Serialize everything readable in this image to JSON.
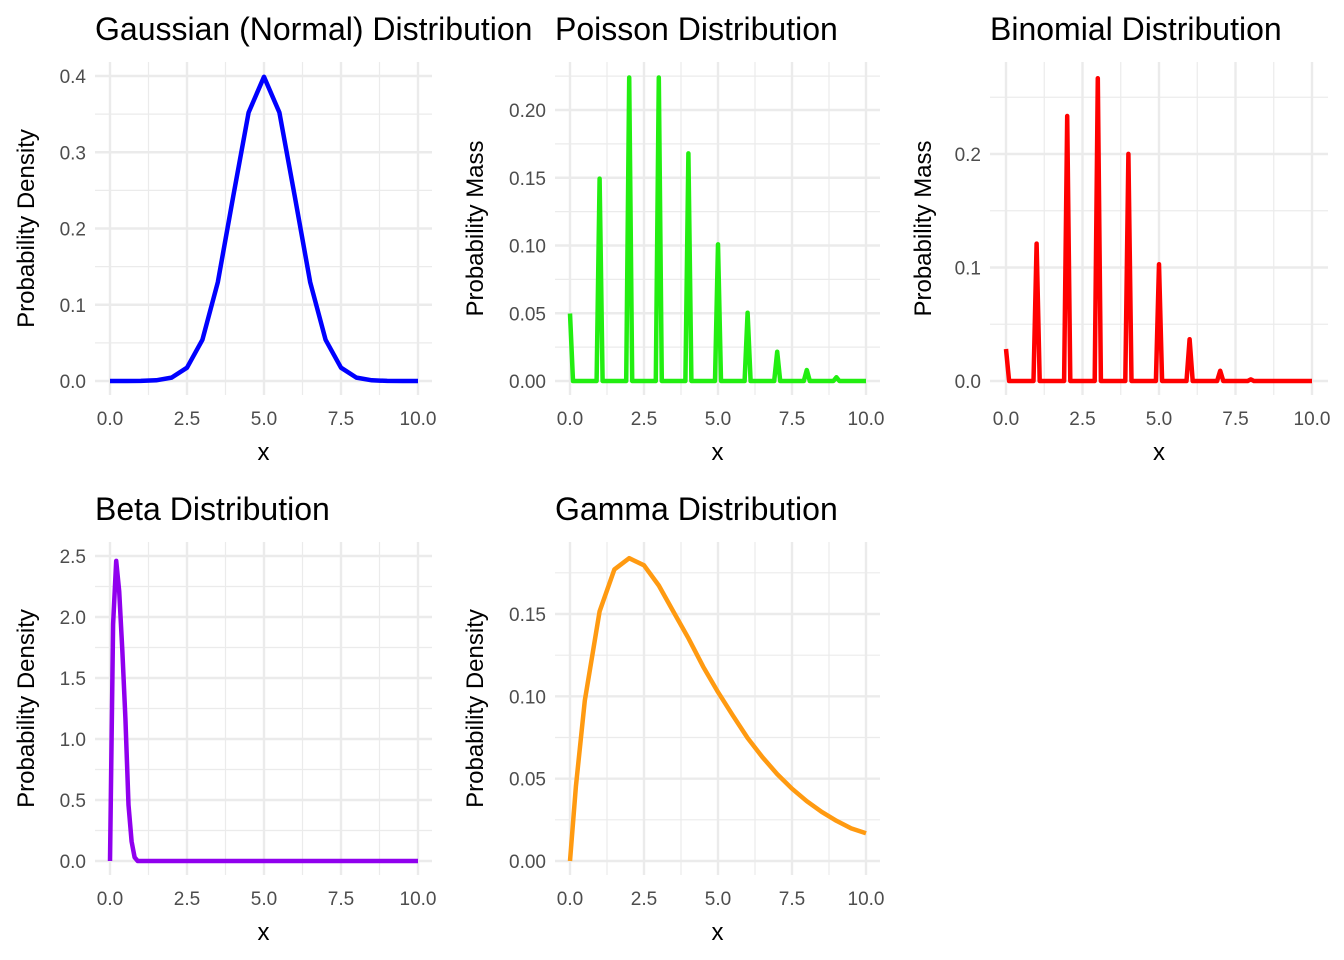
{
  "figure": {
    "background": "#ffffff"
  },
  "chart_data": [
    {
      "type": "line",
      "title": "Gaussian (Normal) Distribution",
      "xlabel": "x",
      "ylabel": "Probability Density",
      "color": "#0000ff",
      "xlim": [
        0,
        10
      ],
      "ylim": [
        0,
        0.4
      ],
      "xticks": [
        0,
        2.5,
        5,
        7.5,
        10
      ],
      "xtick_labels": [
        "0.0",
        "2.5",
        "5.0",
        "7.5",
        "10.0"
      ],
      "yticks": [
        0,
        0.1,
        0.2,
        0.3,
        0.4
      ],
      "ytick_labels": [
        "0.0",
        "0.1",
        "0.2",
        "0.3",
        "0.4"
      ],
      "grid": true,
      "series": [
        {
          "x": [
            0,
            0.5,
            1,
            1.5,
            2,
            2.5,
            3,
            3.5,
            4,
            4.5,
            5,
            5.5,
            6,
            6.5,
            7,
            7.5,
            8,
            8.5,
            9,
            9.5,
            10
          ],
          "y": [
            0,
            0,
            0.0001,
            0.0009,
            0.0044,
            0.0175,
            0.054,
            0.1295,
            0.242,
            0.3521,
            0.3989,
            0.3521,
            0.242,
            0.1295,
            0.054,
            0.0175,
            0.0044,
            0.0009,
            0.0001,
            0,
            0
          ]
        }
      ]
    },
    {
      "type": "line",
      "title": "Poisson Distribution",
      "xlabel": "x",
      "ylabel": "Probability Mass",
      "color": "#22ee11",
      "xlim": [
        0,
        10
      ],
      "ylim": [
        0,
        0.225
      ],
      "xticks": [
        0,
        2.5,
        5,
        7.5,
        10
      ],
      "xtick_labels": [
        "0.0",
        "2.5",
        "5.0",
        "7.5",
        "10.0"
      ],
      "yticks": [
        0,
        0.05,
        0.1,
        0.15,
        0.2
      ],
      "ytick_labels": [
        "0.00",
        "0.05",
        "0.10",
        "0.15",
        "0.20"
      ],
      "grid": true,
      "series": [
        {
          "x": [
            0,
            0.1,
            0.9,
            1,
            1.1,
            1.9,
            2,
            2.1,
            2.9,
            3,
            3.1,
            3.9,
            4,
            4.1,
            4.9,
            5,
            5.1,
            5.9,
            6,
            6.1,
            6.9,
            7,
            7.1,
            7.9,
            8,
            8.1,
            8.9,
            9,
            9.1,
            10
          ],
          "y": [
            0.0498,
            0,
            0,
            0.1494,
            0,
            0,
            0.224,
            0,
            0,
            0.224,
            0,
            0,
            0.168,
            0,
            0,
            0.1008,
            0,
            0,
            0.0504,
            0,
            0,
            0.0216,
            0,
            0,
            0.0081,
            0,
            0,
            0.0027,
            0,
            0
          ]
        }
      ]
    },
    {
      "type": "line",
      "title": "Binomial Distribution",
      "xlabel": "x",
      "ylabel": "Probability Mass",
      "color": "#ff0000",
      "xlim": [
        0,
        10
      ],
      "ylim": [
        0,
        0.28
      ],
      "xticks": [
        0,
        2.5,
        5,
        7.5,
        10
      ],
      "xtick_labels": [
        "0.0",
        "2.5",
        "5.0",
        "7.5",
        "10.0"
      ],
      "yticks": [
        0,
        0.1,
        0.2
      ],
      "ytick_labels": [
        "0.0",
        "0.1",
        "0.2"
      ],
      "grid": true,
      "series": [
        {
          "x": [
            0,
            0.1,
            0.9,
            1,
            1.1,
            1.9,
            2,
            2.1,
            2.9,
            3,
            3.1,
            3.9,
            4,
            4.1,
            4.9,
            5,
            5.1,
            5.9,
            6,
            6.1,
            6.9,
            7,
            7.1,
            7.9,
            8,
            8.1,
            10
          ],
          "y": [
            0.0282,
            0,
            0,
            0.1211,
            0,
            0,
            0.2335,
            0,
            0,
            0.2668,
            0,
            0,
            0.2001,
            0,
            0,
            0.1029,
            0,
            0,
            0.0368,
            0,
            0,
            0.009,
            0,
            0,
            0.0014,
            0,
            0
          ]
        }
      ]
    },
    {
      "type": "line",
      "title": "Beta Distribution",
      "xlabel": "x",
      "ylabel": "Probability Density",
      "color": "#9000ee",
      "xlim": [
        0,
        10
      ],
      "ylim": [
        0,
        2.5
      ],
      "xticks": [
        0,
        2.5,
        5,
        7.5,
        10
      ],
      "xtick_labels": [
        "0.0",
        "2.5",
        "5.0",
        "7.5",
        "10.0"
      ],
      "yticks": [
        0,
        0.5,
        1,
        1.5,
        2,
        2.5
      ],
      "ytick_labels": [
        "0.0",
        "0.5",
        "1.0",
        "1.5",
        "2.0",
        "2.5"
      ],
      "grid": true,
      "series": [
        {
          "x": [
            0,
            0.1,
            0.2,
            0.3,
            0.4,
            0.5,
            0.6,
            0.7,
            0.8,
            0.9,
            1,
            10
          ],
          "y": [
            0,
            1.94,
            2.46,
            2.21,
            1.73,
            1.17,
            0.46,
            0.16,
            0.03,
            0,
            0,
            0
          ]
        }
      ]
    },
    {
      "type": "line",
      "title": "Gamma Distribution",
      "xlabel": "x",
      "ylabel": "Probability Density",
      "color": "#ff9a11",
      "xlim": [
        0,
        10
      ],
      "ylim": [
        0,
        0.185
      ],
      "xticks": [
        0,
        2.5,
        5,
        7.5,
        10
      ],
      "xtick_labels": [
        "0.0",
        "2.5",
        "5.0",
        "7.5",
        "10.0"
      ],
      "yticks": [
        0,
        0.05,
        0.1,
        0.15
      ],
      "ytick_labels": [
        "0.00",
        "0.05",
        "0.10",
        "0.15"
      ],
      "grid": true,
      "series": [
        {
          "x": [
            0,
            0.2,
            0.5,
            1,
            1.5,
            2,
            2.5,
            3,
            3.5,
            4,
            4.5,
            5,
            5.5,
            6,
            6.5,
            7,
            7.5,
            8,
            8.5,
            9,
            9.5,
            10
          ],
          "y": [
            0,
            0.0453,
            0.0974,
            0.1516,
            0.1771,
            0.1839,
            0.1796,
            0.1673,
            0.1512,
            0.1353,
            0.118,
            0.1026,
            0.0884,
            0.0747,
            0.0631,
            0.0528,
            0.0439,
            0.0363,
            0.0299,
            0.0244,
            0.0198,
            0.0168
          ]
        }
      ]
    }
  ]
}
